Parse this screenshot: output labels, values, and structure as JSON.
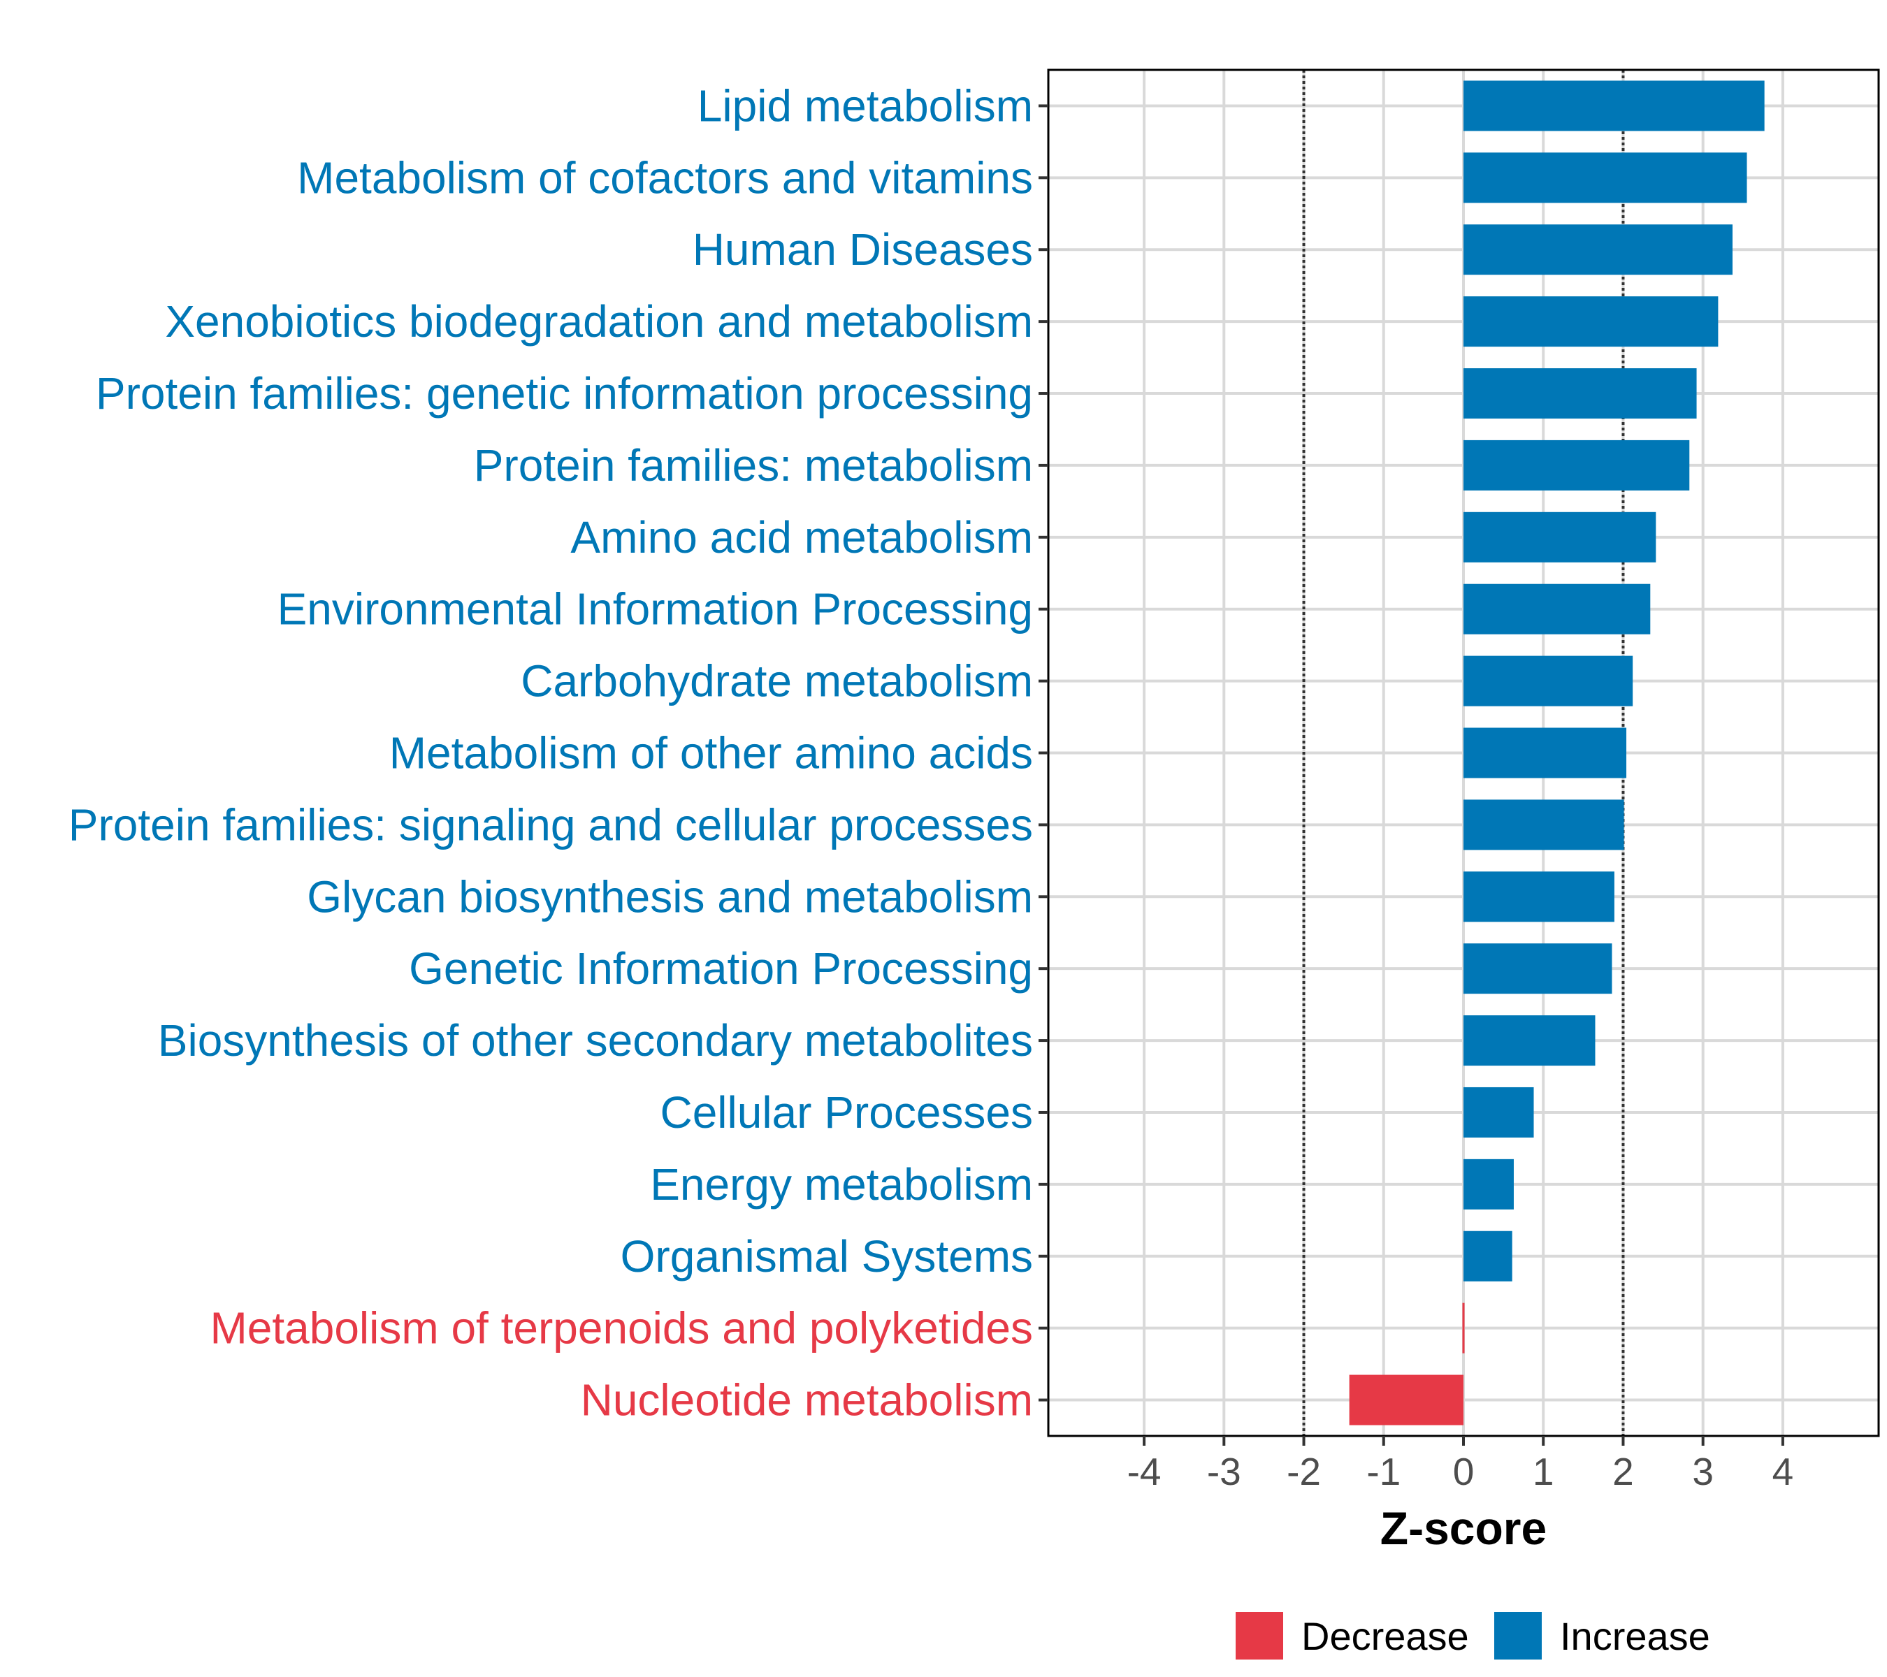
{
  "chart_data": {
    "type": "bar",
    "orientation": "horizontal",
    "xlabel": "Z-score",
    "xlim": [
      -5.2,
      5.2
    ],
    "xticks": [
      -4,
      -3,
      -2,
      -1,
      0,
      1,
      2,
      3,
      4
    ],
    "tick_labels": [
      "-4",
      "-3",
      "-2",
      "-1",
      "0",
      "1",
      "2",
      "3",
      "4"
    ],
    "reference_lines": [
      -2,
      2
    ],
    "grid": true,
    "categories": [
      "Lipid metabolism",
      "Metabolism of cofactors and vitamins",
      "Human Diseases",
      "Xenobiotics biodegradation and metabolism",
      "Protein families: genetic information processing",
      "Protein families: metabolism",
      "Amino acid metabolism",
      "Environmental Information Processing",
      "Carbohydrate metabolism",
      "Metabolism of other amino acids",
      "Protein families: signaling and cellular processes",
      "Glycan biosynthesis and metabolism",
      "Genetic Information Processing",
      "Biosynthesis of other secondary metabolites",
      "Cellular Processes",
      "Energy metabolism",
      "Organismal Systems",
      "Metabolism of terpenoids and polyketides",
      "Nucleotide metabolism"
    ],
    "values": [
      3.77,
      3.55,
      3.37,
      3.19,
      2.92,
      2.83,
      2.41,
      2.34,
      2.12,
      2.04,
      2.01,
      1.89,
      1.86,
      1.65,
      0.88,
      0.63,
      0.61,
      0.02,
      -1.43
    ],
    "direction": [
      "Increase",
      "Increase",
      "Increase",
      "Increase",
      "Increase",
      "Increase",
      "Increase",
      "Increase",
      "Increase",
      "Increase",
      "Increase",
      "Increase",
      "Increase",
      "Increase",
      "Increase",
      "Increase",
      "Increase",
      "Decrease",
      "Decrease"
    ],
    "legend": {
      "position": "bottom",
      "entries": [
        {
          "label": "Decrease",
          "color": "#e63946"
        },
        {
          "label": "Increase",
          "color": "#0077b6"
        }
      ]
    },
    "colors": {
      "Increase": "#0077b6",
      "Decrease": "#e63946"
    }
  }
}
